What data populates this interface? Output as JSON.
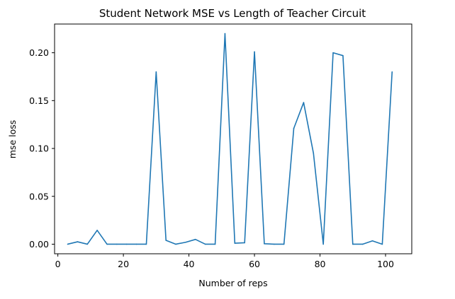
{
  "chart_data": {
    "type": "line",
    "title": "Student Network MSE vs Length of Teacher Circuit",
    "xlabel": "Number of reps",
    "ylabel": "mse loss",
    "xlim": [
      -1,
      108
    ],
    "ylim": [
      -0.01,
      0.23
    ],
    "xticks": [
      0,
      20,
      40,
      60,
      80,
      100
    ],
    "xtick_labels": [
      "0",
      "20",
      "40",
      "60",
      "80",
      "100"
    ],
    "yticks": [
      0.0,
      0.05,
      0.1,
      0.15,
      0.2
    ],
    "ytick_labels": [
      "0.00",
      "0.05",
      "0.10",
      "0.15",
      "0.20"
    ],
    "grid": false,
    "legend": "none",
    "series": [
      {
        "color": "#1f77b4",
        "x": [
          3,
          6,
          9,
          12,
          15,
          18,
          21,
          24,
          27,
          30,
          33,
          36,
          39,
          42,
          45,
          48,
          51,
          54,
          57,
          60,
          63,
          66,
          69,
          72,
          75,
          78,
          81,
          84,
          87,
          90,
          93,
          96,
          99,
          102
        ],
        "y": [
          0.0,
          0.0025,
          0.0,
          0.0145,
          0.0,
          0.0,
          0.0,
          0.0,
          0.0,
          0.18,
          0.004,
          0.0,
          0.002,
          0.005,
          0.0,
          0.0,
          0.22,
          0.001,
          0.0015,
          0.201,
          0.0005,
          0.0,
          0.0,
          0.121,
          0.148,
          0.095,
          0.0,
          0.2,
          0.197,
          0.0,
          0.0,
          0.0035,
          0.0,
          0.18
        ]
      }
    ]
  }
}
